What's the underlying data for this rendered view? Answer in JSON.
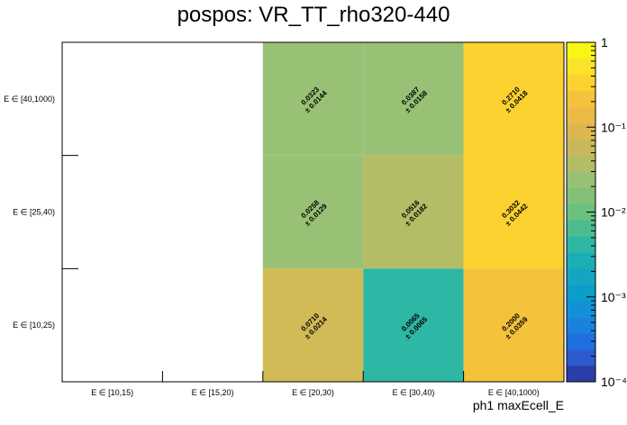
{
  "chart_data": {
    "type": "heatmap",
    "title": "pospos: VR_TT_rho320-440",
    "xlabel": "ph1 maxEcell_E",
    "ylabel": "",
    "x_categories": [
      "E ∈ [10,15)",
      "E ∈ [15,20)",
      "E ∈ [20,30)",
      "E ∈ [30,40)",
      "E ∈ [40,1000)"
    ],
    "y_categories": [
      "E ∈ [10,25)",
      "E ∈ [25,40)",
      "E ∈ [40,1000)"
    ],
    "cells": [
      {
        "xi": 2,
        "yi": 2,
        "value": 0.0323,
        "error": 0.0144,
        "label": "0.0323",
        "err_label": "± 0.0144",
        "color": "#98c175"
      },
      {
        "xi": 3,
        "yi": 2,
        "value": 0.0387,
        "error": 0.0158,
        "label": "0.0387",
        "err_label": "± 0.0158",
        "color": "#98c175"
      },
      {
        "xi": 4,
        "yi": 2,
        "value": 0.271,
        "error": 0.0418,
        "label": "0.2710",
        "err_label": "± 0.0418",
        "color": "#fbd230"
      },
      {
        "xi": 2,
        "yi": 1,
        "value": 0.0258,
        "error": 0.0129,
        "label": "0.0258",
        "err_label": "± 0.0129",
        "color": "#98c175"
      },
      {
        "xi": 3,
        "yi": 1,
        "value": 0.0516,
        "error": 0.0182,
        "label": "0.0516",
        "err_label": "± 0.0182",
        "color": "#b4bc65"
      },
      {
        "xi": 4,
        "yi": 1,
        "value": 0.3032,
        "error": 0.0442,
        "label": "0.3032",
        "err_label": "± 0.0442",
        "color": "#fbd230"
      },
      {
        "xi": 2,
        "yi": 0,
        "value": 0.071,
        "error": 0.0214,
        "label": "0.0710",
        "err_label": "± 0.0214",
        "color": "#d2ba56"
      },
      {
        "xi": 3,
        "yi": 0,
        "value": 0.0065,
        "error": 0.0065,
        "label": "0.0065",
        "err_label": "± 0.0065",
        "color": "#2db7a4"
      },
      {
        "xi": 4,
        "yi": 0,
        "value": 0.2,
        "error": 0.0359,
        "label": "0.2000",
        "err_label": "± 0.0359",
        "color": "#f5c23c"
      }
    ],
    "z_scale": "log",
    "z_range": [
      0.0001,
      1
    ],
    "z_ticks": [
      {
        "value": 1,
        "label": "1"
      },
      {
        "value": 0.1,
        "label": "10⁻¹"
      },
      {
        "value": 0.01,
        "label": "10⁻²"
      },
      {
        "value": 0.001,
        "label": "10⁻³"
      },
      {
        "value": 0.0001,
        "label": "10⁻⁴"
      }
    ],
    "palette": [
      "#2d3da8",
      "#2b5bcf",
      "#1f6fe0",
      "#1b82dc",
      "#1291d6",
      "#0a9ec9",
      "#14a6c0",
      "#1caeb6",
      "#2db7a4",
      "#4abd8f",
      "#6ac07f",
      "#83c077",
      "#98c175",
      "#b4bc65",
      "#cab75b",
      "#dcb751",
      "#ecbb46",
      "#f5c23c",
      "#fbd230",
      "#fbe329",
      "#f9f514"
    ]
  }
}
